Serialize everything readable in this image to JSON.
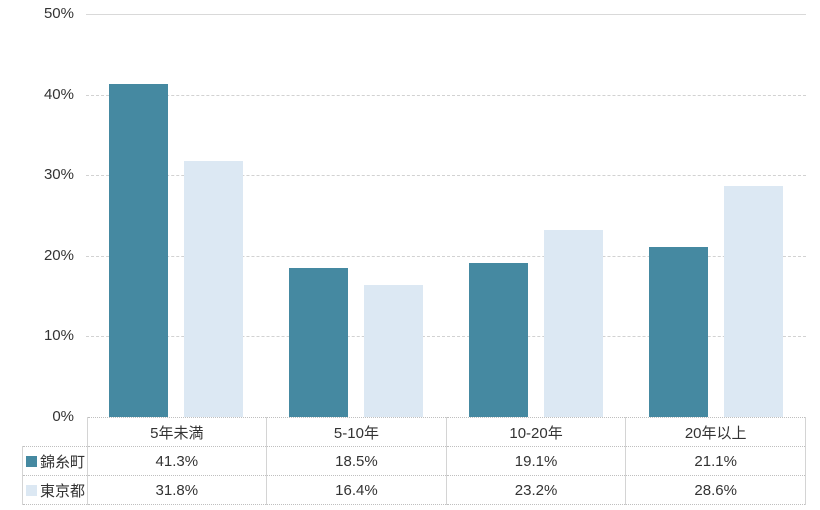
{
  "chart_data": {
    "type": "bar",
    "title": "",
    "xlabel": "",
    "ylabel": "",
    "categories": [
      "5年未満",
      "5-10年",
      "10-20年",
      "20年以上"
    ],
    "series": [
      {
        "name": "錦糸町",
        "color": "#4589a1",
        "values": [
          41.3,
          18.5,
          19.1,
          21.1
        ]
      },
      {
        "name": "東京都",
        "color": "#dce8f3",
        "values": [
          31.8,
          16.4,
          23.2,
          28.6
        ]
      }
    ],
    "ylim": [
      0,
      50
    ],
    "y_tick_step": 10,
    "y_ticks": [
      "0%",
      "10%",
      "20%",
      "30%",
      "40%",
      "50%"
    ],
    "grid": "horizontal-dashed",
    "legend_position": "data-table-left",
    "value_format": "percent-1-decimal"
  },
  "table": {
    "row_labels": [
      "錦糸町",
      "東京都"
    ],
    "rows": [
      [
        "41.3%",
        "18.5%",
        "19.1%",
        "21.1%"
      ],
      [
        "31.8%",
        "16.4%",
        "23.2%",
        "28.6%"
      ]
    ]
  },
  "colors": {
    "series1": "#4589a1",
    "series2": "#dce8f3",
    "gridline": "#d2d2d2",
    "table_border": "#c9c9c9",
    "text": "#333333"
  }
}
